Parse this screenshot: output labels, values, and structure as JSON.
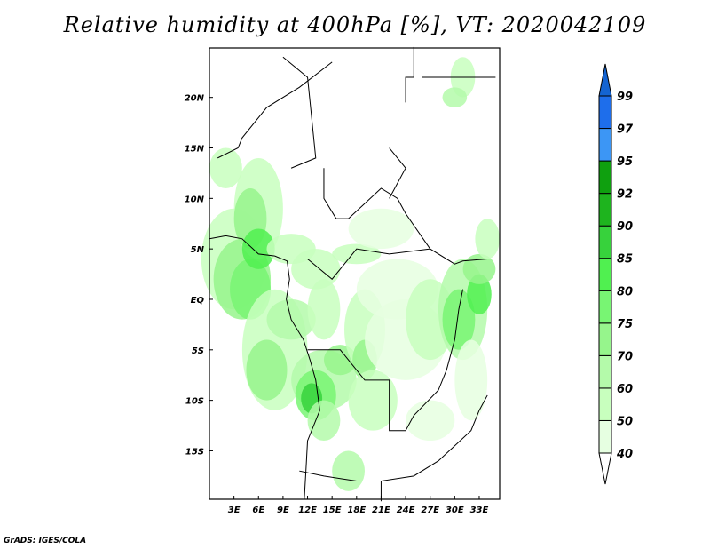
{
  "title": "Relative humidity at 400hPa [%], VT: 2020042109",
  "credit": "GrADS: IGES/COLA",
  "chart_data": {
    "type": "heatmap",
    "title": "Relative humidity at 400hPa [%], VT: 2020042109",
    "variable": "Relative humidity",
    "units": "%",
    "lon_range": [
      0,
      35.5
    ],
    "lat_range": [
      -19.8,
      24.9
    ],
    "x_ticks": [
      {
        "value": 3,
        "label": "3E"
      },
      {
        "value": 6,
        "label": "6E"
      },
      {
        "value": 9,
        "label": "9E"
      },
      {
        "value": 12,
        "label": "12E"
      },
      {
        "value": 15,
        "label": "15E"
      },
      {
        "value": 18,
        "label": "18E"
      },
      {
        "value": 21,
        "label": "21E"
      },
      {
        "value": 24,
        "label": "24E"
      },
      {
        "value": 27,
        "label": "27E"
      },
      {
        "value": 30,
        "label": "30E"
      },
      {
        "value": 33,
        "label": "33E"
      }
    ],
    "y_ticks": [
      {
        "value": 20,
        "label": "20N"
      },
      {
        "value": 15,
        "label": "15N"
      },
      {
        "value": 10,
        "label": "10N"
      },
      {
        "value": 5,
        "label": "5N"
      },
      {
        "value": 0,
        "label": "EQ"
      },
      {
        "value": -5,
        "label": "5S"
      },
      {
        "value": -10,
        "label": "10S"
      },
      {
        "value": -15,
        "label": "15S"
      }
    ],
    "colorbar": {
      "labels": [
        "40",
        "50",
        "60",
        "70",
        "75",
        "80",
        "85",
        "90",
        "92",
        "95",
        "97",
        "99"
      ],
      "colors": [
        "#e6ffe1",
        "#c8ffbe",
        "#b4faaa",
        "#96f58c",
        "#78f573",
        "#50f050",
        "#37d23c",
        "#1eb41e",
        "#0fa00f",
        "#3c96f5",
        "#1e6eeb"
      ],
      "over_color": "#1464d2",
      "under_color": "#ffffff"
    }
  }
}
